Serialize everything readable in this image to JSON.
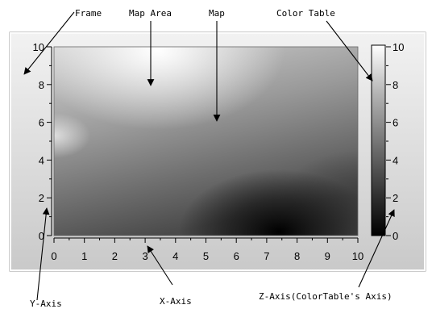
{
  "callouts": {
    "frame": "Frame",
    "map_area": "Map Area",
    "map": "Map",
    "color_table": "Color Table",
    "y_axis": "Y-Axis",
    "x_axis": "X-Axis",
    "z_axis": "Z-Axis(ColorTable's Axis)"
  },
  "x_axis": {
    "ticks": [
      "0",
      "1",
      "2",
      "3",
      "4",
      "5",
      "6",
      "7",
      "8",
      "9",
      "10"
    ]
  },
  "y_axis": {
    "ticks": [
      "0",
      "2",
      "4",
      "6",
      "8",
      "10"
    ]
  },
  "z_axis": {
    "ticks": [
      "0",
      "2",
      "4",
      "6",
      "8",
      "10"
    ]
  },
  "colors": {
    "frame_face": "#d9d9d9",
    "frame_highlight": "#f5f5f5",
    "frame_shadow": "#8c8c8c",
    "scale_low": "#000000",
    "scale_high": "#ffffff"
  }
}
